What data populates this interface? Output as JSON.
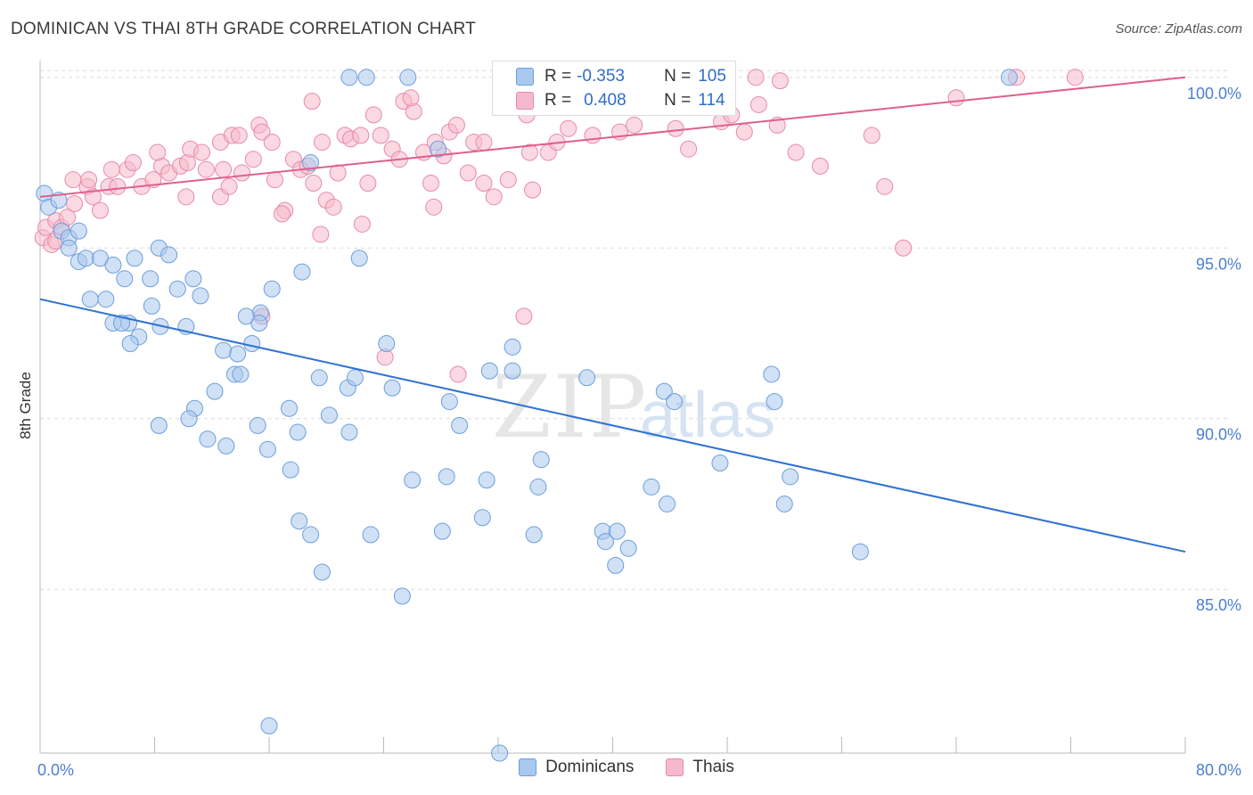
{
  "title": "DOMINICAN VS THAI 8TH GRADE CORRELATION CHART",
  "source": "Source: ZipAtlas.com",
  "watermark": {
    "zip": "ZIP",
    "atlas": "atlas"
  },
  "colors": {
    "blue_fill": "#a9c8ee",
    "blue_stroke": "#6c9edb",
    "blue_line": "#2f72d2",
    "pink_fill": "#f6b9cc",
    "pink_stroke": "#e88aa8",
    "pink_line": "#e0608c",
    "tick_text": "#4a7fd0",
    "grid": "#dcdcdc"
  },
  "stats_box": {
    "rows": [
      {
        "r_label": "R =",
        "r_value": "-0.353",
        "n_label": "N =",
        "n_value": "105",
        "swatch": "blue"
      },
      {
        "r_label": "R =",
        "r_value": "0.408",
        "n_label": "N =",
        "n_value": "114",
        "swatch": "pink"
      }
    ]
  },
  "legend": [
    {
      "label": "Dominicans",
      "swatch": "blue"
    },
    {
      "label": "Thais",
      "swatch": "pink"
    }
  ],
  "chart_data": {
    "type": "scatter",
    "title": "DOMINICAN VS THAI 8TH GRADE CORRELATION CHART",
    "xlabel": "",
    "ylabel": "8th Grade",
    "xlim": [
      0,
      80
    ],
    "ylim": [
      80.2,
      100.7
    ],
    "x_tick_labels": [
      "0.0%",
      "80.0%"
    ],
    "y_ticks": [
      85,
      90,
      95,
      100
    ],
    "y_tick_labels": [
      "85.0%",
      "90.0%",
      "95.0%",
      "100.0%"
    ],
    "grid": true,
    "legend_position": "bottom-center",
    "series": [
      {
        "name": "Dominicans",
        "trend": {
          "x": [
            0,
            80
          ],
          "y": [
            93.5,
            86.1
          ]
        },
        "points": [
          [
            0.3,
            96.6
          ],
          [
            0.6,
            96.2
          ],
          [
            1.3,
            96.4
          ],
          [
            1.5,
            95.5
          ],
          [
            2.0,
            95.3
          ],
          [
            2.7,
            95.5
          ],
          [
            2.0,
            95.0
          ],
          [
            2.7,
            94.6
          ],
          [
            3.2,
            94.7
          ],
          [
            4.2,
            94.7
          ],
          [
            5.1,
            94.5
          ],
          [
            6.6,
            94.7
          ],
          [
            5.9,
            94.1
          ],
          [
            7.7,
            94.1
          ],
          [
            8.3,
            95.0
          ],
          [
            9.0,
            94.8
          ],
          [
            10.7,
            94.1
          ],
          [
            9.6,
            93.8
          ],
          [
            11.2,
            93.6
          ],
          [
            3.5,
            93.5
          ],
          [
            4.6,
            93.5
          ],
          [
            7.8,
            93.3
          ],
          [
            5.1,
            92.8
          ],
          [
            6.2,
            92.8
          ],
          [
            6.9,
            92.4
          ],
          [
            8.4,
            92.7
          ],
          [
            10.2,
            92.7
          ],
          [
            5.7,
            92.8
          ],
          [
            6.3,
            92.2
          ],
          [
            12.8,
            92.0
          ],
          [
            13.8,
            91.9
          ],
          [
            14.8,
            92.2
          ],
          [
            15.4,
            93.1
          ],
          [
            15.3,
            92.8
          ],
          [
            14.4,
            93.0
          ],
          [
            16.2,
            93.8
          ],
          [
            18.3,
            94.3
          ],
          [
            22.3,
            94.7
          ],
          [
            13.6,
            91.3
          ],
          [
            14.0,
            91.3
          ],
          [
            12.2,
            90.8
          ],
          [
            19.5,
            91.2
          ],
          [
            21.5,
            90.9
          ],
          [
            22.0,
            91.2
          ],
          [
            24.6,
            90.9
          ],
          [
            24.2,
            92.2
          ],
          [
            28.6,
            90.5
          ],
          [
            31.4,
            91.4
          ],
          [
            33.0,
            91.4
          ],
          [
            33.0,
            92.1
          ],
          [
            38.2,
            91.2
          ],
          [
            10.8,
            90.3
          ],
          [
            10.4,
            90.0
          ],
          [
            8.3,
            89.8
          ],
          [
            11.7,
            89.4
          ],
          [
            13.0,
            89.2
          ],
          [
            15.2,
            89.8
          ],
          [
            17.4,
            90.3
          ],
          [
            20.2,
            90.1
          ],
          [
            18.0,
            89.6
          ],
          [
            21.6,
            89.6
          ],
          [
            29.3,
            89.8
          ],
          [
            15.9,
            89.1
          ],
          [
            17.5,
            88.5
          ],
          [
            26.0,
            88.2
          ],
          [
            28.4,
            88.3
          ],
          [
            31.2,
            88.2
          ],
          [
            35.0,
            88.8
          ],
          [
            34.8,
            88.0
          ],
          [
            42.7,
            88.0
          ],
          [
            43.8,
            87.5
          ],
          [
            43.6,
            90.8
          ],
          [
            44.3,
            90.5
          ],
          [
            47.5,
            88.7
          ],
          [
            51.1,
            91.3
          ],
          [
            51.3,
            90.5
          ],
          [
            52.4,
            88.3
          ],
          [
            52.0,
            87.5
          ],
          [
            18.1,
            87.0
          ],
          [
            18.9,
            86.6
          ],
          [
            23.1,
            86.6
          ],
          [
            28.1,
            86.7
          ],
          [
            30.9,
            87.1
          ],
          [
            34.5,
            86.6
          ],
          [
            39.3,
            86.7
          ],
          [
            39.5,
            86.4
          ],
          [
            40.3,
            86.7
          ],
          [
            40.2,
            85.7
          ],
          [
            41.1,
            86.2
          ],
          [
            57.3,
            86.1
          ],
          [
            19.7,
            85.5
          ],
          [
            25.3,
            84.8
          ],
          [
            16.0,
            81.0
          ],
          [
            32.1,
            80.2
          ],
          [
            21.6,
            100.0
          ],
          [
            22.8,
            100.0
          ],
          [
            25.7,
            100.0
          ],
          [
            27.8,
            97.9
          ],
          [
            18.9,
            97.5
          ],
          [
            67.7,
            100.0
          ]
        ]
      },
      {
        "name": "Thais",
        "trend": {
          "x": [
            0,
            80
          ],
          "y": [
            96.5,
            100.0
          ]
        },
        "points": [
          [
            0.2,
            95.3
          ],
          [
            0.4,
            95.6
          ],
          [
            0.8,
            95.1
          ],
          [
            1.1,
            95.8
          ],
          [
            1.5,
            95.6
          ],
          [
            1.9,
            95.9
          ],
          [
            1.1,
            95.2
          ],
          [
            2.4,
            96.3
          ],
          [
            2.3,
            97.0
          ],
          [
            3.3,
            96.8
          ],
          [
            3.7,
            96.5
          ],
          [
            3.4,
            97.0
          ],
          [
            4.2,
            96.1
          ],
          [
            4.8,
            96.8
          ],
          [
            5.4,
            96.8
          ],
          [
            5.0,
            97.3
          ],
          [
            6.1,
            97.3
          ],
          [
            6.5,
            97.5
          ],
          [
            7.1,
            96.8
          ],
          [
            7.9,
            97.0
          ],
          [
            8.5,
            97.4
          ],
          [
            9.0,
            97.2
          ],
          [
            9.8,
            97.4
          ],
          [
            10.3,
            97.5
          ],
          [
            10.5,
            97.9
          ],
          [
            11.3,
            97.8
          ],
          [
            11.6,
            97.3
          ],
          [
            12.6,
            98.1
          ],
          [
            12.6,
            96.5
          ],
          [
            13.2,
            96.8
          ],
          [
            13.4,
            98.3
          ],
          [
            13.9,
            98.3
          ],
          [
            14.1,
            97.2
          ],
          [
            14.9,
            97.6
          ],
          [
            15.3,
            98.6
          ],
          [
            15.5,
            98.4
          ],
          [
            16.2,
            98.1
          ],
          [
            16.4,
            97.0
          ],
          [
            17.1,
            96.1
          ],
          [
            17.7,
            97.6
          ],
          [
            18.2,
            97.3
          ],
          [
            18.7,
            97.4
          ],
          [
            19.1,
            96.9
          ],
          [
            19.7,
            98.1
          ],
          [
            20.0,
            96.4
          ],
          [
            20.5,
            96.2
          ],
          [
            20.8,
            97.2
          ],
          [
            21.3,
            98.3
          ],
          [
            21.7,
            98.2
          ],
          [
            22.4,
            98.3
          ],
          [
            22.9,
            96.9
          ],
          [
            23.3,
            98.9
          ],
          [
            23.8,
            98.3
          ],
          [
            24.6,
            97.9
          ],
          [
            25.1,
            97.6
          ],
          [
            25.4,
            99.3
          ],
          [
            26.1,
            99.0
          ],
          [
            26.8,
            97.8
          ],
          [
            27.6,
            98.1
          ],
          [
            28.2,
            97.7
          ],
          [
            28.6,
            98.4
          ],
          [
            29.1,
            98.6
          ],
          [
            29.9,
            97.2
          ],
          [
            30.3,
            98.1
          ],
          [
            31.0,
            96.9
          ],
          [
            31.7,
            96.5
          ],
          [
            32.7,
            97.0
          ],
          [
            34.2,
            97.8
          ],
          [
            35.5,
            97.8
          ],
          [
            36.1,
            98.1
          ],
          [
            36.9,
            98.5
          ],
          [
            37.4,
            99.2
          ],
          [
            38.6,
            98.3
          ],
          [
            27.5,
            96.2
          ],
          [
            34.4,
            96.7
          ],
          [
            40.5,
            98.4
          ],
          [
            41.5,
            98.6
          ],
          [
            44.4,
            98.5
          ],
          [
            45.3,
            97.9
          ],
          [
            46.0,
            99.3
          ],
          [
            47.6,
            98.7
          ],
          [
            48.3,
            98.9
          ],
          [
            49.2,
            98.4
          ],
          [
            50.2,
            99.2
          ],
          [
            50.0,
            100.0
          ],
          [
            51.7,
            99.9
          ],
          [
            19.0,
            99.3
          ],
          [
            25.9,
            99.4
          ],
          [
            32.4,
            99.9
          ],
          [
            33.8,
            99.5
          ],
          [
            35.6,
            99.4
          ],
          [
            36.7,
            99.4
          ],
          [
            8.2,
            97.8
          ],
          [
            10.2,
            96.5
          ],
          [
            12.8,
            97.3
          ],
          [
            16.9,
            96.0
          ],
          [
            19.6,
            95.4
          ],
          [
            22.5,
            95.7
          ],
          [
            27.3,
            96.9
          ],
          [
            33.8,
            93.0
          ],
          [
            24.1,
            91.8
          ],
          [
            29.2,
            91.3
          ],
          [
            15.5,
            93.0
          ],
          [
            51.5,
            98.6
          ],
          [
            52.8,
            97.8
          ],
          [
            54.5,
            97.4
          ],
          [
            58.1,
            98.3
          ],
          [
            59.0,
            96.8
          ],
          [
            60.3,
            95.0
          ],
          [
            64.0,
            99.4
          ],
          [
            68.2,
            100.0
          ],
          [
            72.3,
            100.0
          ],
          [
            31.0,
            98.1
          ],
          [
            34.0,
            98.9
          ]
        ]
      }
    ]
  }
}
